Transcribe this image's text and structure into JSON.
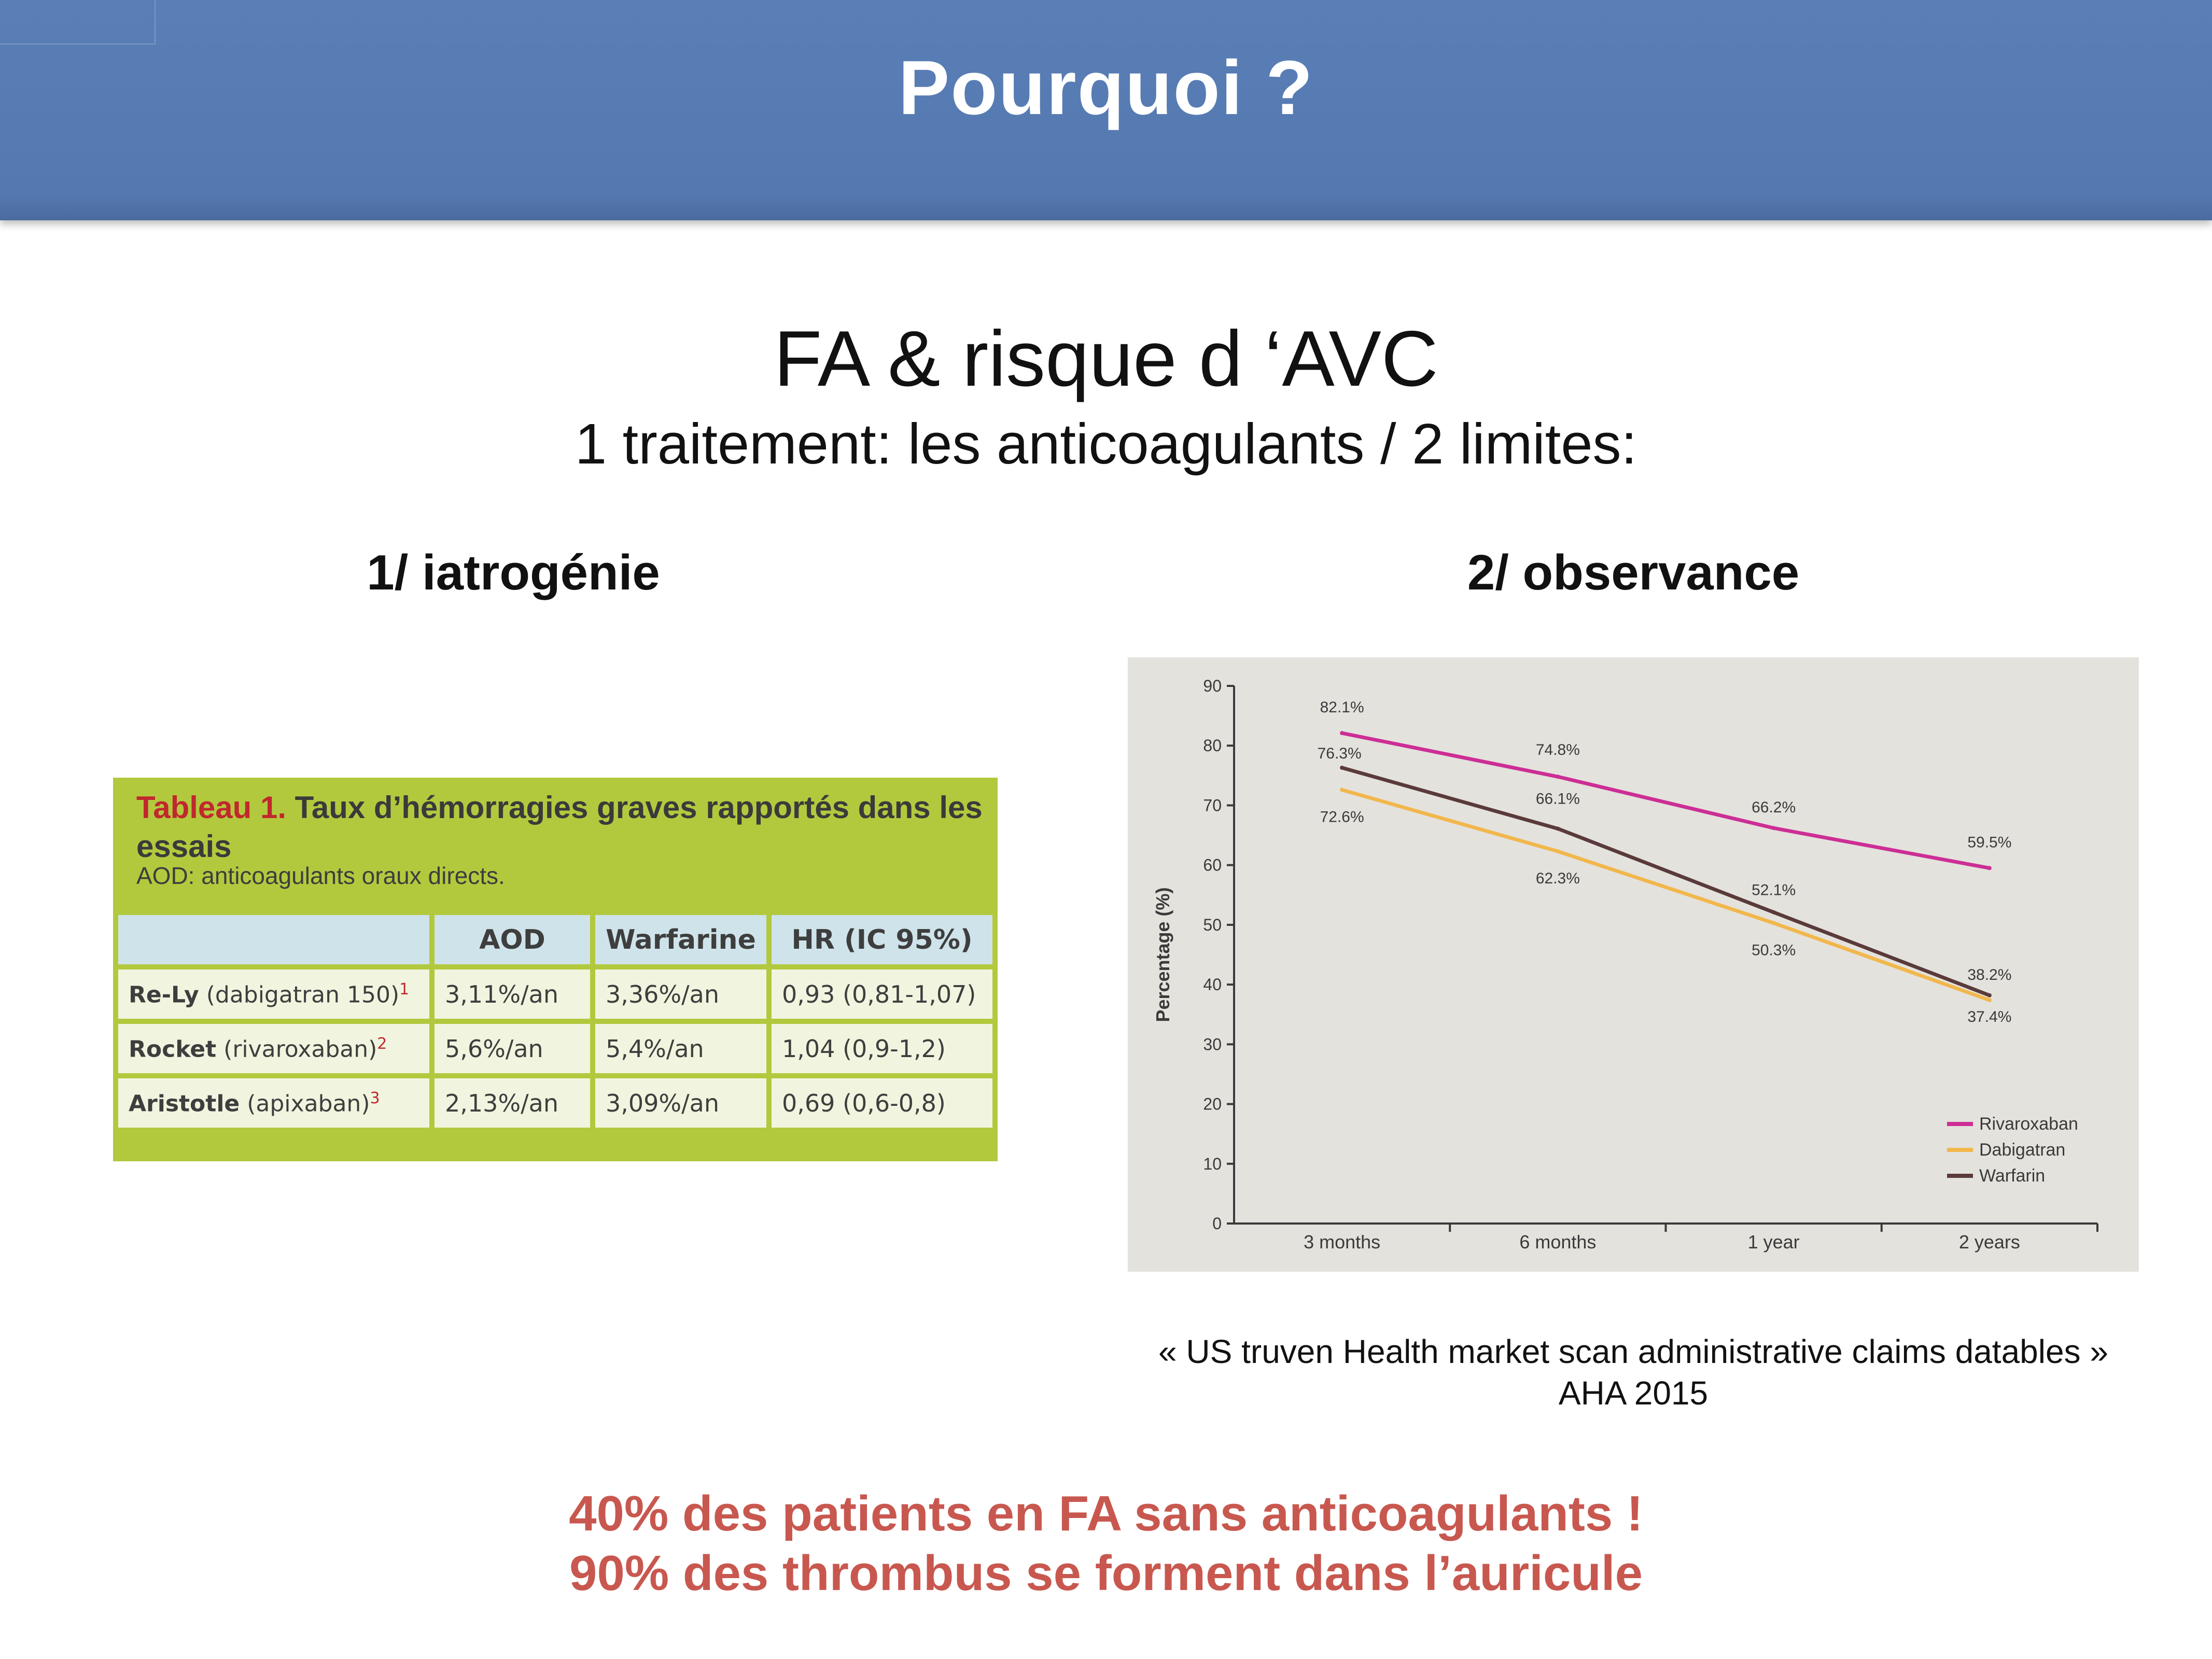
{
  "slide": {
    "title": "Pourquoi ?",
    "heading": "FA & risque d ‘AVC",
    "subheading": "1 traitement: les anticoagulants / 2 limites:",
    "col1_title": "1/  iatrogénie",
    "col2_title": "2/ observance",
    "source_line1": "« US truven Health market scan administrative claims datables »",
    "source_line2": "AHA 2015",
    "note_line1": "40% des patients en FA sans anticoagulants !",
    "note_line2": "90% des thrombus se forment dans l’auricule"
  },
  "table": {
    "caption_label": "Tableau 1.",
    "caption_text": "Taux d’hémorragies graves rapportés dans les essais",
    "note": "AOD: anticoagulants oraux directs.",
    "headers": [
      "",
      "AOD",
      "Warfarine",
      "HR (IC 95%)"
    ],
    "rows": [
      {
        "trial": "Re-Ly",
        "drug": "(dabigatran 150)",
        "ref": "1",
        "aod": "3,11%/an",
        "warfarine": "3,36%/an",
        "hr": "0,93 (0,81-1,07)"
      },
      {
        "trial": "Rocket",
        "drug": "(rivaroxaban)",
        "ref": "2",
        "aod": "5,6%/an",
        "warfarine": "5,4%/an",
        "hr": "1,04 (0,9-1,2)"
      },
      {
        "trial": "Aristotle",
        "drug": "(apixaban)",
        "ref": "3",
        "aod": "2,13%/an",
        "warfarine": "3,09%/an",
        "hr": "0,69 (0,6-0,8)"
      }
    ],
    "colors": {
      "frame": "#b2c93e",
      "header_bg": "#cfe3ea",
      "cell_bg": "#f1f5df",
      "label_red": "#c0282e"
    }
  },
  "chart_data": {
    "type": "line",
    "categories": [
      "3 months",
      "6 months",
      "1 year",
      "2 years"
    ],
    "ylabel": "Percentage (%)",
    "xlabel": "",
    "ylim": [
      0,
      90
    ],
    "yticks": [
      0,
      10,
      20,
      30,
      40,
      50,
      60,
      70,
      80,
      90
    ],
    "grid": false,
    "legend_position": "bottom-right",
    "series": [
      {
        "name": "Rivaroxaban",
        "color": "#cc2e95",
        "values": [
          82.1,
          74.8,
          66.2,
          59.5
        ],
        "labels": [
          "82.1%",
          "74.8%",
          "66.2%",
          "59.5%"
        ]
      },
      {
        "name": "Dabigatran",
        "color": "#f2b74c",
        "values": [
          72.6,
          62.3,
          50.3,
          37.4
        ],
        "labels": [
          "72.6%",
          "62.3%",
          "50.3%",
          "37.4%"
        ]
      },
      {
        "name": "Warfarin",
        "color": "#5a3a3a",
        "values": [
          76.3,
          66.1,
          52.1,
          38.2
        ],
        "labels": [
          "76.3%",
          "66.1%",
          "52.1%",
          "38.2%"
        ]
      }
    ]
  }
}
